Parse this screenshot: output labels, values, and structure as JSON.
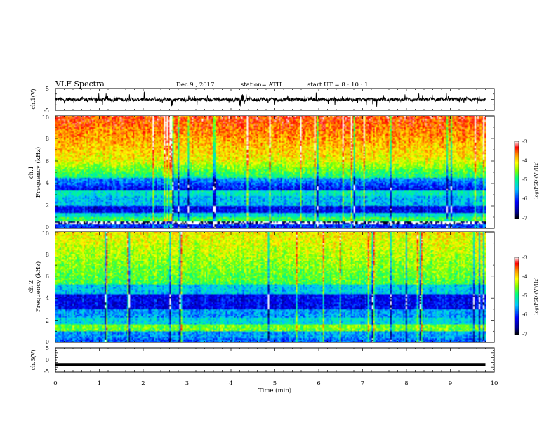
{
  "header": {
    "title": "VLF  Spectra",
    "date": "Dec.9  , 2017",
    "station": "station= ATH",
    "start_ut": "start  UT  =   8  : 10 : 1"
  },
  "chart_data": [
    {
      "type": "line",
      "panel": "ch1-waveform",
      "ylabel": "ch.1(V)",
      "ylim": [
        -5,
        5
      ],
      "yticks": [
        "5",
        "-5"
      ],
      "xlim": [
        0,
        10
      ],
      "baseline_value": 0,
      "color": "#000000"
    },
    {
      "type": "heatmap",
      "panel": "ch1-spectrogram",
      "ylabel_line1": "ch.1",
      "ylabel_line2": "Frequency  (kHz)",
      "ylim": [
        0,
        10
      ],
      "yticks": [
        "0",
        "2",
        "4",
        "6",
        "8",
        "10"
      ],
      "xlim": [
        0,
        10
      ],
      "data_end_time": 9.8,
      "colorbar": {
        "label": "log(PSD)(V²/Hz)",
        "range": [
          -7,
          -3
        ],
        "ticks": [
          "-3",
          "-4",
          "-5",
          "-6",
          "-7"
        ]
      }
    },
    {
      "type": "heatmap",
      "panel": "ch2-spectrogram",
      "ylabel_line1": "ch.2",
      "ylabel_line2": "Frequency  (kHz)",
      "ylim": [
        0,
        10
      ],
      "yticks": [
        "0",
        "2",
        "4",
        "6",
        "8",
        "10"
      ],
      "xlim": [
        0,
        10
      ],
      "data_end_time": 9.8,
      "colorbar": {
        "label": "log(PSD)(V²/Hz)",
        "range": [
          -7,
          -3
        ],
        "ticks": [
          "-3",
          "-4",
          "-5",
          "-6",
          "-7"
        ]
      }
    },
    {
      "type": "line",
      "panel": "ch3-waveform",
      "ylabel": "ch.3(V)",
      "ylim": [
        -5,
        5
      ],
      "yticks": [
        "5",
        "0",
        "-5"
      ],
      "xlim": [
        0,
        10
      ],
      "baseline_value": -2,
      "color": "#000000",
      "xlabel": "Time  (min)",
      "xticks": [
        "0",
        "1",
        "2",
        "3",
        "4",
        "5",
        "6",
        "7",
        "8",
        "9",
        "10"
      ]
    }
  ]
}
